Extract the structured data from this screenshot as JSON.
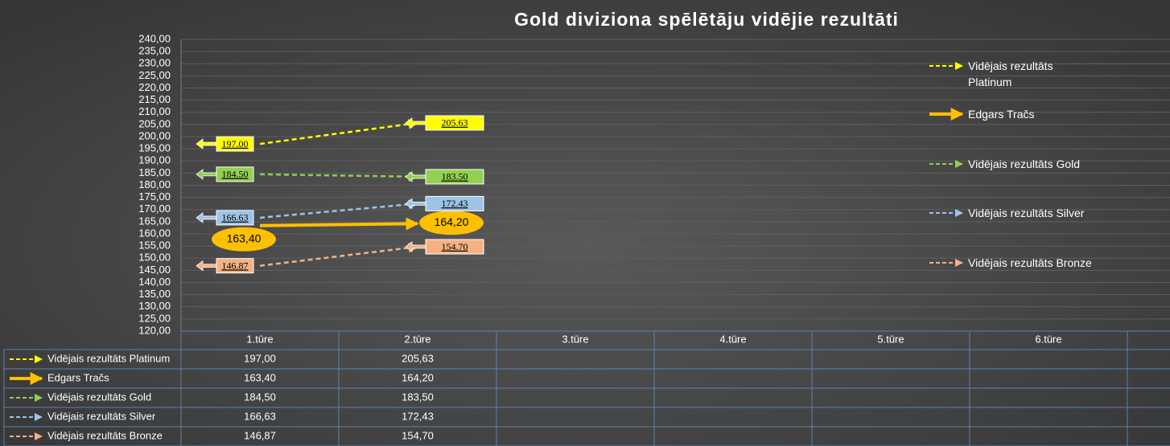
{
  "chart_data": {
    "type": "line",
    "title": "Gold diviziona spēlētāju vidējie rezultāti",
    "categories": [
      "1.tūre",
      "2.tūre",
      "3.tūre",
      "4.tūre",
      "5.tūre",
      "6.tūre"
    ],
    "ylim": [
      120,
      240
    ],
    "yticks": [
      {
        "value": 120,
        "label": "120,00"
      },
      {
        "value": 125,
        "label": "125,00"
      },
      {
        "value": 130,
        "label": "130,00"
      },
      {
        "value": 135,
        "label": "135,00"
      },
      {
        "value": 140,
        "label": "140,00"
      },
      {
        "value": 145,
        "label": "145,00"
      },
      {
        "value": 150,
        "label": "150,00"
      },
      {
        "value": 155,
        "label": "155,00"
      },
      {
        "value": 160,
        "label": "160,00"
      },
      {
        "value": 165,
        "label": "165,00"
      },
      {
        "value": 170,
        "label": "170,00"
      },
      {
        "value": 175,
        "label": "175,00"
      },
      {
        "value": 180,
        "label": "180,00"
      },
      {
        "value": 185,
        "label": "185,00"
      },
      {
        "value": 190,
        "label": "190,00"
      },
      {
        "value": 195,
        "label": "195,00"
      },
      {
        "value": 200,
        "label": "200,00"
      },
      {
        "value": 205,
        "label": "205,00"
      },
      {
        "value": 210,
        "label": "210,00"
      },
      {
        "value": 215,
        "label": "215,00"
      },
      {
        "value": 220,
        "label": "220,00"
      },
      {
        "value": 225,
        "label": "225,00"
      },
      {
        "value": 230,
        "label": "230,00"
      },
      {
        "value": 235,
        "label": "235,00"
      },
      {
        "value": 240,
        "label": "240,00"
      }
    ],
    "grid": true,
    "legend": "right",
    "data_table": true,
    "series": [
      {
        "name": "Vidējais rezultāts Platinum",
        "color": "#ffff00",
        "dashed": true,
        "label_shape": "box",
        "values": [
          197.0,
          205.63,
          null,
          null,
          null,
          null
        ],
        "value_labels": [
          "197.00",
          "205.63",
          null,
          null,
          null,
          null
        ],
        "table_labels": [
          "197,00",
          "205,63",
          null,
          null,
          null,
          null
        ]
      },
      {
        "name": "Edgars Tračs",
        "color": "#ffc000",
        "dashed": false,
        "label_shape": "ellipse",
        "values": [
          163.4,
          164.2,
          null,
          null,
          null,
          null
        ],
        "value_labels": [
          "163,40",
          "164,20",
          null,
          null,
          null,
          null
        ],
        "table_labels": [
          "163,40",
          "164,20",
          null,
          null,
          null,
          null
        ]
      },
      {
        "name": "Vidējais rezultāts Gold",
        "color": "#92d050",
        "dashed": true,
        "label_shape": "box",
        "values": [
          184.5,
          183.5,
          null,
          null,
          null,
          null
        ],
        "value_labels": [
          "184.50",
          "183.50",
          null,
          null,
          null,
          null
        ],
        "table_labels": [
          "184,50",
          "183,50",
          null,
          null,
          null,
          null
        ]
      },
      {
        "name": "Vidējais rezultāts Silver",
        "color": "#9dc3e6",
        "dashed": true,
        "label_shape": "box",
        "values": [
          166.63,
          172.43,
          null,
          null,
          null,
          null
        ],
        "value_labels": [
          "166.63",
          "172.43",
          null,
          null,
          null,
          null
        ],
        "table_labels": [
          "166,63",
          "172,43",
          null,
          null,
          null,
          null
        ]
      },
      {
        "name": "Vidējais rezultāts Bronze",
        "color": "#f4b183",
        "dashed": true,
        "label_shape": "box",
        "values": [
          146.87,
          154.7,
          null,
          null,
          null,
          null
        ],
        "value_labels": [
          "146.87",
          "154.70",
          null,
          null,
          null,
          null
        ],
        "table_labels": [
          "146,87",
          "154,70",
          null,
          null,
          null,
          null
        ]
      }
    ]
  }
}
